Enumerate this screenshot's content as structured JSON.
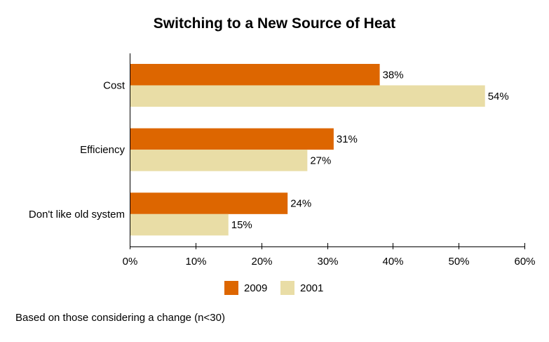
{
  "chart_data": {
    "type": "bar",
    "orientation": "horizontal",
    "title": "Switching to a New Source of Heat",
    "categories": [
      "Cost",
      "Efficiency",
      "Don't like old system"
    ],
    "series": [
      {
        "name": "2009",
        "color": "#DD6600",
        "values": [
          38,
          31,
          24
        ],
        "labels": [
          "38%",
          "31%",
          "24%"
        ]
      },
      {
        "name": "2001",
        "color": "#E9DDA6",
        "values": [
          54,
          27,
          15
        ],
        "labels": [
          "54%",
          "27%",
          "15%"
        ]
      }
    ],
    "xlim": [
      0,
      60
    ],
    "xticks": [
      0,
      10,
      20,
      30,
      40,
      50,
      60
    ],
    "xtick_labels": [
      "0%",
      "10%",
      "20%",
      "30%",
      "40%",
      "50%",
      "60%"
    ],
    "xlabel": "",
    "ylabel": "",
    "grid": false,
    "legend_position": "bottom",
    "footnote": "Based on those considering a change (n<30)"
  }
}
